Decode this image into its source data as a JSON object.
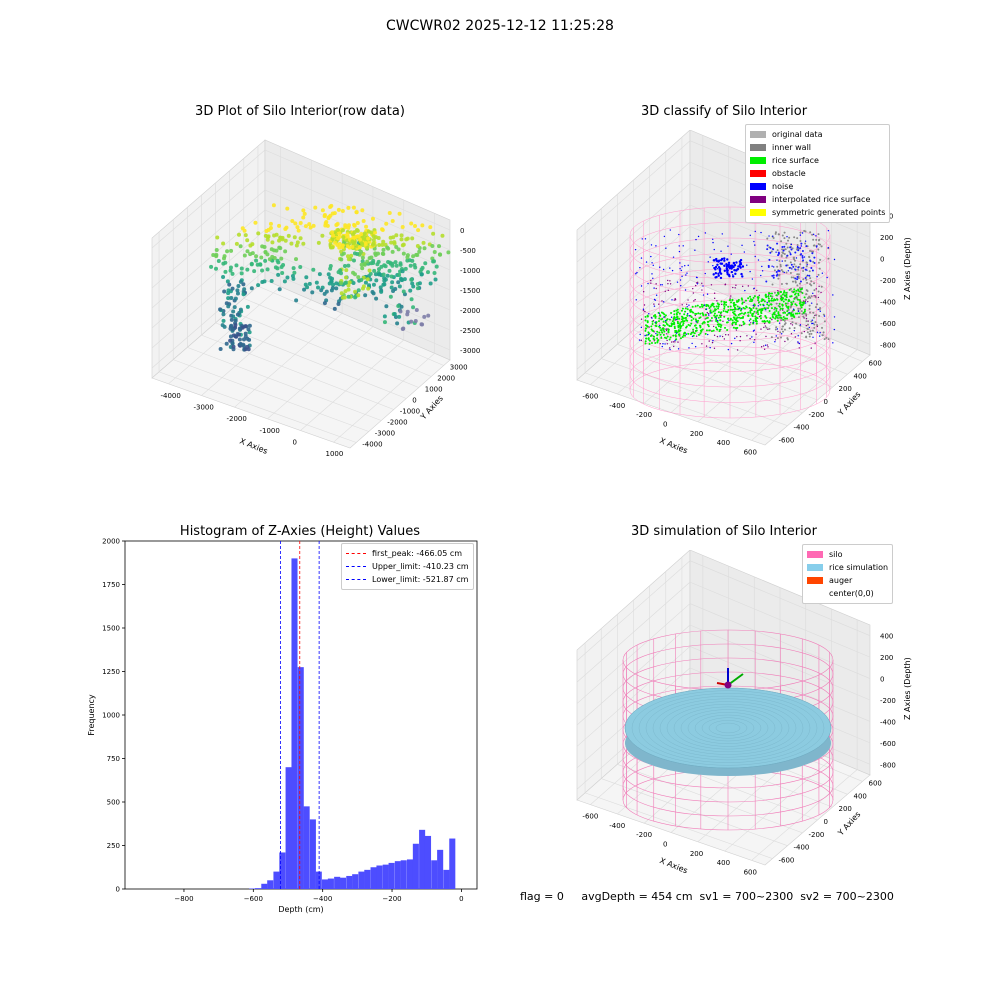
{
  "page": {
    "title": "CWCWR02 2025-12-12 11:25:28"
  },
  "panels": {
    "raw": {
      "title": "3D Plot of Silo Interior(row data)",
      "x_label": "X Axies",
      "y_label": "Y Axies",
      "z_label": "Z Axies (Depth)",
      "x_ticks": [
        "-4000",
        "-3000",
        "-2000",
        "-1000",
        "0",
        "1000"
      ],
      "y_ticks": [
        "3000",
        "2000",
        "1000",
        "0",
        "-1000",
        "-2000",
        "-3000",
        "-4000"
      ],
      "z_ticks": [
        "0",
        "-500",
        "-1000",
        "-1500",
        "-2000",
        "-2500",
        "-3000"
      ]
    },
    "classify": {
      "title": "3D classify of Silo Interior",
      "x_label": "X Axies",
      "y_label": "Y Axies",
      "z_label": "Z Axies (Depth)",
      "x_ticks": [
        "-600",
        "-400",
        "-200",
        "0",
        "200",
        "400",
        "600"
      ],
      "y_ticks": [
        "600",
        "400",
        "200",
        "0",
        "-200",
        "-400",
        "-600"
      ],
      "z_ticks": [
        "400",
        "200",
        "0",
        "-200",
        "-400",
        "-600",
        "-800"
      ],
      "legend": [
        {
          "label": "original data",
          "color": "#b0b0b0"
        },
        {
          "label": "inner wall",
          "color": "#808080"
        },
        {
          "label": "rice surface",
          "color": "#00ee00"
        },
        {
          "label": "obstacle",
          "color": "#ff0000"
        },
        {
          "label": "noise",
          "color": "#0000ff"
        },
        {
          "label": "interpolated rice surface",
          "color": "#800080"
        },
        {
          "label": "symmetric generated points",
          "color": "#ffff00"
        }
      ]
    },
    "simulation": {
      "title": "3D simulation of Silo Interior",
      "x_label": "X Axies",
      "y_label": "Y Axies",
      "z_label": "Z Axies (Depth)",
      "x_ticks": [
        "-600",
        "-400",
        "-200",
        "0",
        "200",
        "400",
        "600"
      ],
      "y_ticks": [
        "600",
        "400",
        "200",
        "0",
        "-200",
        "-400",
        "-600"
      ],
      "z_ticks": [
        "400",
        "200",
        "0",
        "-200",
        "-400",
        "-600",
        "-800"
      ],
      "legend": [
        {
          "label": "silo",
          "color": "#ff69b4"
        },
        {
          "label": "rice simulation",
          "color": "#87ceeb"
        },
        {
          "label": "auger",
          "color": "#ff4500"
        },
        {
          "label": "center(0,0)",
          "color": "#ffffff"
        }
      ]
    }
  },
  "status": {
    "text": "flag = 0     avgDepth = 454 cm  sv1 = 700~2300  sv2 = 700~2300"
  },
  "colors": {
    "histogram_bar": "#4d4dff",
    "peak_line": "#ff0000",
    "limit_line": "#0000ff",
    "silo_wire": "#ff69b4",
    "rice": "#87ceeb"
  },
  "chart_data": {
    "type": "bar",
    "title": "Histogram of Z-Axies (Height) Values",
    "xlabel": "Depth (cm)",
    "ylabel": "Frequency",
    "xlim": [
      -970,
      45
    ],
    "ylim": [
      0,
      2000
    ],
    "x_ticks": [
      -800,
      -600,
      -400,
      -200,
      0
    ],
    "y_ticks": [
      0,
      250,
      500,
      750,
      1000,
      1250,
      1500,
      1750,
      2000
    ],
    "grid": false,
    "legend_position": "top-right",
    "bin_width": 17.5,
    "bins": [
      {
        "x0": -612,
        "value": 3
      },
      {
        "x0": -595,
        "value": 5
      },
      {
        "x0": -577,
        "value": 30
      },
      {
        "x0": -560,
        "value": 50
      },
      {
        "x0": -542,
        "value": 100
      },
      {
        "x0": -525,
        "value": 210
      },
      {
        "x0": -507,
        "value": 700
      },
      {
        "x0": -490,
        "value": 1900
      },
      {
        "x0": -472,
        "value": 1275
      },
      {
        "x0": -455,
        "value": 475
      },
      {
        "x0": -437,
        "value": 400
      },
      {
        "x0": -420,
        "value": 100
      },
      {
        "x0": -402,
        "value": 55
      },
      {
        "x0": -385,
        "value": 60
      },
      {
        "x0": -367,
        "value": 70
      },
      {
        "x0": -350,
        "value": 65
      },
      {
        "x0": -332,
        "value": 75
      },
      {
        "x0": -315,
        "value": 85
      },
      {
        "x0": -297,
        "value": 100
      },
      {
        "x0": -280,
        "value": 110
      },
      {
        "x0": -262,
        "value": 125
      },
      {
        "x0": -245,
        "value": 135
      },
      {
        "x0": -227,
        "value": 140
      },
      {
        "x0": -210,
        "value": 150
      },
      {
        "x0": -192,
        "value": 160
      },
      {
        "x0": -175,
        "value": 165
      },
      {
        "x0": -157,
        "value": 170
      },
      {
        "x0": -140,
        "value": 260
      },
      {
        "x0": -122,
        "value": 340
      },
      {
        "x0": -105,
        "value": 305
      },
      {
        "x0": -87,
        "value": 165
      },
      {
        "x0": -70,
        "value": 225
      },
      {
        "x0": -52,
        "value": 110
      },
      {
        "x0": -35,
        "value": 290
      }
    ],
    "lines": [
      {
        "name": "first_peak: -466.05 cm",
        "x": -466.05,
        "color": "#ff0000"
      },
      {
        "name": "Upper_limit: -410.23 cm",
        "x": -410.23,
        "color": "#0000ff"
      },
      {
        "name": "Lower_limit: -521.87 cm",
        "x": -521.87,
        "color": "#0000ff"
      }
    ]
  }
}
